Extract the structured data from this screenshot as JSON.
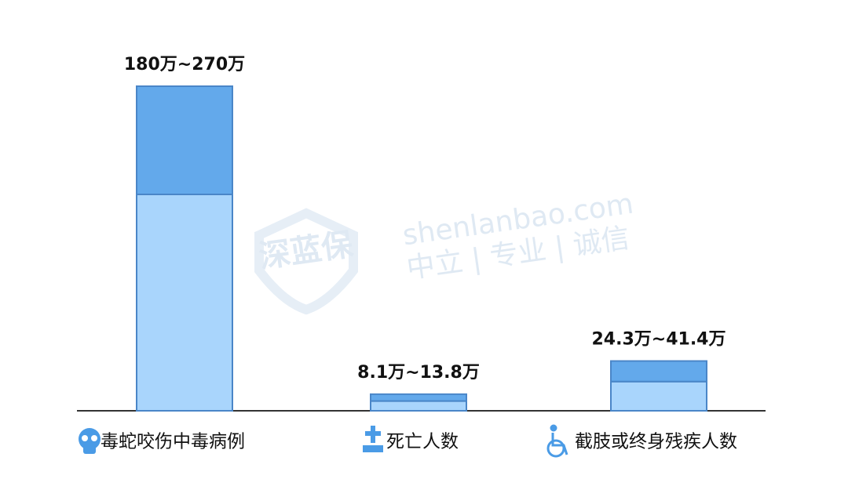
{
  "chart_data": {
    "type": "range-bar",
    "categories": [
      "毒蛇咬伤中毒病例",
      "死亡人数",
      "截肢或终身残疾人数"
    ],
    "series": [
      {
        "color": "#a9d5fc",
        "values": [
          180,
          8.1,
          24.3
        ]
      },
      {
        "color": "#63a9eb",
        "values": [
          270,
          13.8,
          41.4
        ]
      }
    ],
    "value_labels": [
      "180万~270万",
      "8.1万~13.8万",
      "24.3万~41.4万"
    ],
    "border_color": "#4a86c8"
  },
  "watermark": {
    "logo": "深蓝保",
    "site": "shenlanbao.com",
    "motto": "中立 | 专业 | 诚信"
  }
}
